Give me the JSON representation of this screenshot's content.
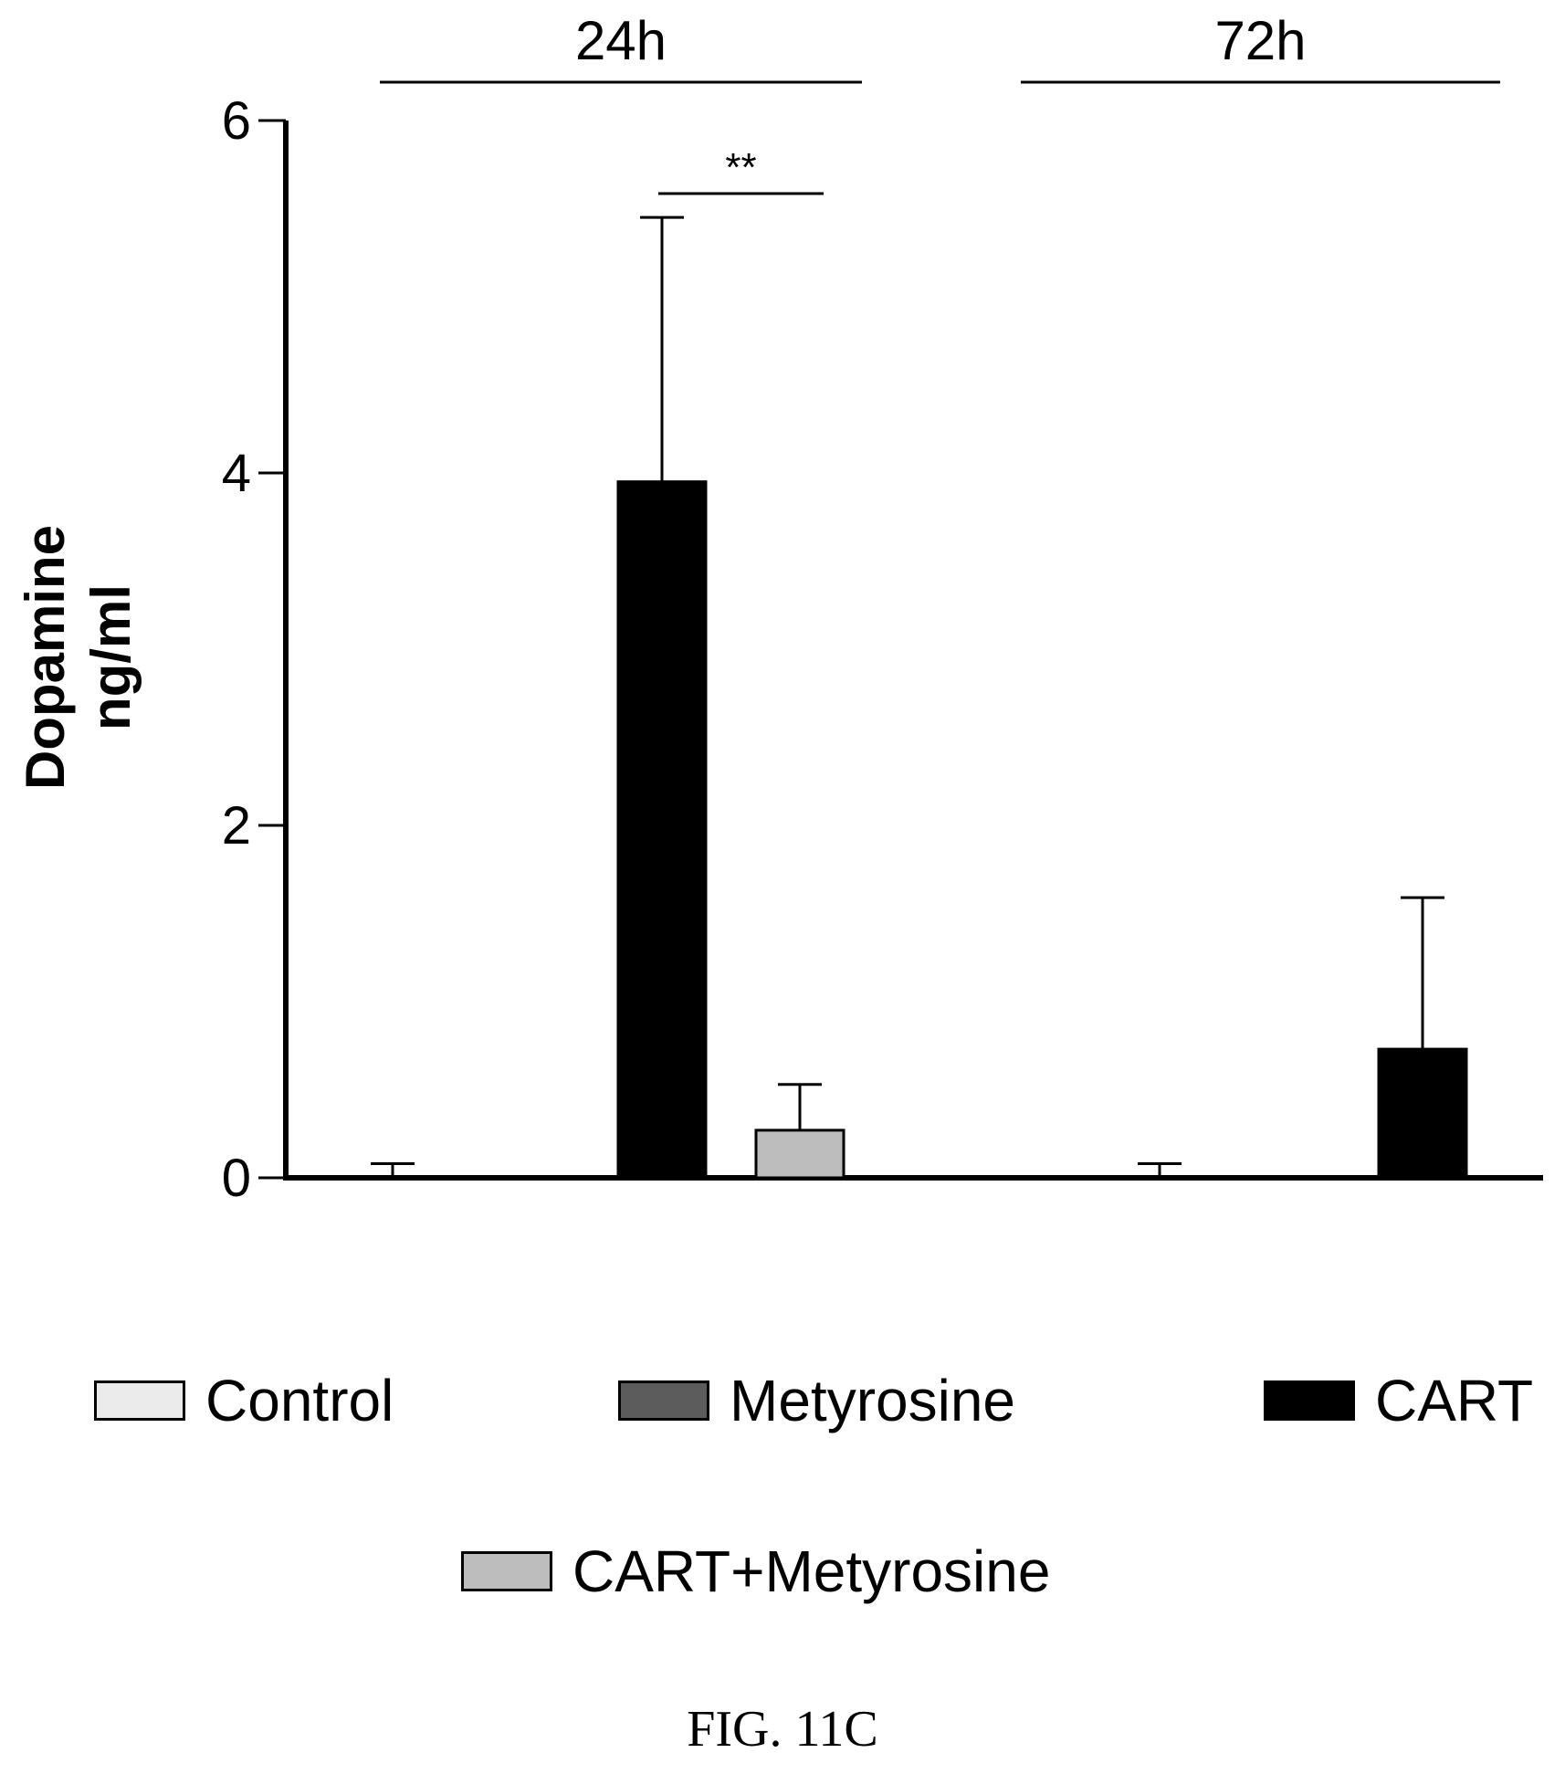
{
  "chart_data": {
    "type": "bar",
    "ylabel": [
      "Dopamine",
      "ng/ml"
    ],
    "ylim": [
      0,
      6
    ],
    "yticks": [
      "0",
      "2",
      "4",
      "6"
    ],
    "groups": [
      {
        "label": "24h",
        "bars": [
          {
            "series": "Control",
            "value": 0.0,
            "error": 0.08
          },
          {
            "series": "Metyrosine",
            "value": 0.0,
            "error": 0.0
          },
          {
            "series": "CART",
            "value": 3.95,
            "error": 1.5
          },
          {
            "series": "CART+Metyrosine",
            "value": 0.27,
            "error": 0.26
          }
        ]
      },
      {
        "label": "72h",
        "bars": [
          {
            "series": "Control",
            "value": 0.0,
            "error": 0.08
          },
          {
            "series": "Metyrosine",
            "value": 0.0,
            "error": 0.0
          },
          {
            "series": "CART",
            "value": 0.73,
            "error": 0.86
          },
          {
            "series": "CART+Metyrosine",
            "value": 0.0,
            "error": 0.19
          }
        ]
      }
    ],
    "significance": [
      {
        "group": "24h",
        "from": "CART",
        "to": "CART+Metyrosine",
        "label": "**"
      }
    ],
    "legend": [
      {
        "name": "Control",
        "color": "#ebebeb"
      },
      {
        "name": "Metyrosine",
        "color": "#5c5c5c"
      },
      {
        "name": "CART",
        "color": "#000000"
      },
      {
        "name": "CART+Metyrosine",
        "color": "#bdbdbd"
      }
    ]
  },
  "caption": "FIG. 11C"
}
